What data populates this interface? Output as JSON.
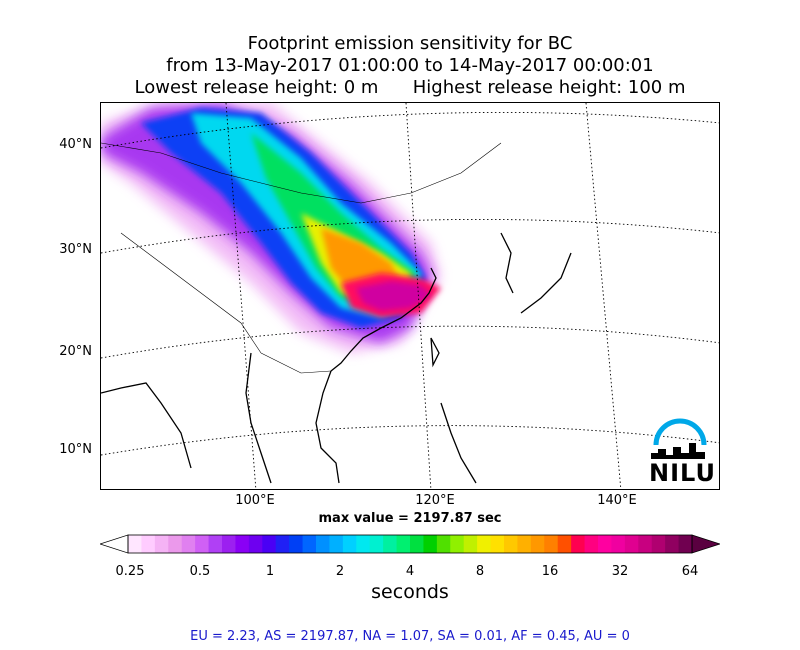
{
  "title": {
    "line1": "Footprint emission sensitivity for BC",
    "line2": "from 13-May-2017 01:00:00 to 14-May-2017 00:00:01",
    "line3": "Lowest release height: 0 m      Highest release height: 100 m"
  },
  "map": {
    "lat_labels": [
      "40°N",
      "30°N",
      "20°N",
      "10°N"
    ],
    "lon_labels": [
      "100°E",
      "120°E",
      "140°E"
    ],
    "logo_text": "NILU",
    "max_value_text": "max value = 2197.87 sec"
  },
  "colorbar": {
    "tick_labels": [
      "0.25",
      "0.5",
      "1",
      "2",
      "4",
      "8",
      "16",
      "32",
      "64"
    ],
    "units": "seconds",
    "colors": [
      "#ffe6ff",
      "#ffccff",
      "#f5b3f5",
      "#eb99eb",
      "#e080f0",
      "#d060f5",
      "#b040f5",
      "#9c20f0",
      "#8a00f5",
      "#6e00f0",
      "#4a00f5",
      "#2020f5",
      "#0040f5",
      "#0066ff",
      "#0090ff",
      "#00b0ff",
      "#00d0ff",
      "#00e8f0",
      "#00f0d0",
      "#00f0a0",
      "#00f070",
      "#00e040",
      "#00d000",
      "#50e000",
      "#90f000",
      "#c0f000",
      "#f0f000",
      "#ffe000",
      "#ffc800",
      "#ffb000",
      "#ff9800",
      "#ff8000",
      "#ff5000",
      "#ff0050",
      "#ff0080",
      "#ff00a0",
      "#f000a0",
      "#e00090",
      "#c80080",
      "#b00070",
      "#900060",
      "#700050"
    ]
  },
  "stats_text": "EU = 2.23,  AS = 2197.87,  NA = 1.07,  SA = 0.01,  AF = 0.45,  AU = 0"
}
